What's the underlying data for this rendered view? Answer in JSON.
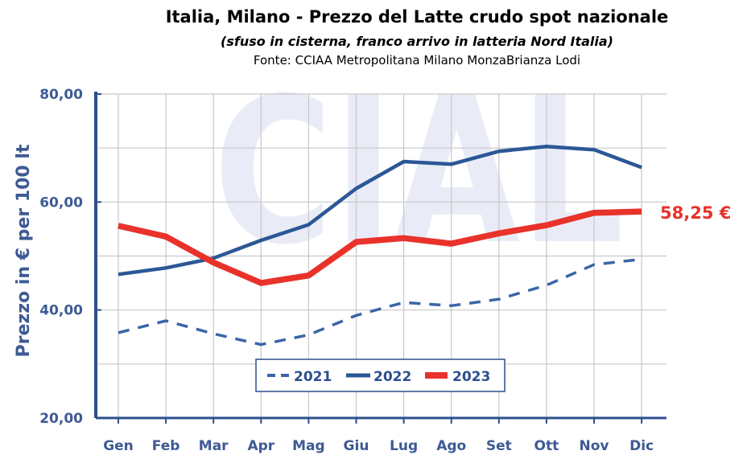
{
  "chart_data": {
    "type": "line",
    "title": "Italia, Milano - Prezzo del Latte crudo spot nazionale",
    "subtitle": "(sfuso in cisterna, franco arrivo in latteria Nord Italia)",
    "source": "Fonte: CCIAA Metropolitana Milano MonzaBrianza Lodi",
    "watermark": "CIAL",
    "ylabel": "Prezzo in € per 100 lt",
    "ylim": [
      20,
      80
    ],
    "yticks": [
      {
        "value": 20,
        "label": "20,00"
      },
      {
        "value": 40,
        "label": "40,00"
      },
      {
        "value": 60,
        "label": "60,00"
      },
      {
        "value": 80,
        "label": "80,00"
      }
    ],
    "minor_gridlines": [
      30,
      50,
      70
    ],
    "categories": [
      "Gen",
      "Feb",
      "Mar",
      "Apr",
      "Mag",
      "Giu",
      "Lug",
      "Ago",
      "Set",
      "Ott",
      "Nov",
      "Dic"
    ],
    "series": [
      {
        "name": "2021",
        "color": "#3a65a8",
        "style": "dashed",
        "values": [
          35.8,
          38.0,
          35.6,
          33.6,
          35.4,
          39.0,
          41.4,
          40.8,
          42.0,
          44.6,
          48.4,
          49.4
        ]
      },
      {
        "name": "2022",
        "color": "#2b5797",
        "style": "solid",
        "values": [
          46.6,
          47.8,
          49.6,
          52.9,
          55.8,
          62.5,
          67.5,
          67.0,
          69.4,
          70.3,
          69.7,
          66.4
        ]
      },
      {
        "name": "2023",
        "color": "#e8322a",
        "style": "solid-thick",
        "values": [
          55.6,
          53.6,
          48.8,
          45.0,
          46.4,
          52.6,
          53.3,
          52.3,
          54.2,
          55.7,
          58.0,
          58.25
        ]
      }
    ],
    "end_label": "58,25 €",
    "legend": {
      "position": "bottom-center",
      "entries": [
        "2021",
        "2022",
        "2023"
      ]
    },
    "colors": {
      "axis": "#2b4f8c",
      "grid": "#c8c8c8",
      "text": "#3d5a94"
    }
  }
}
